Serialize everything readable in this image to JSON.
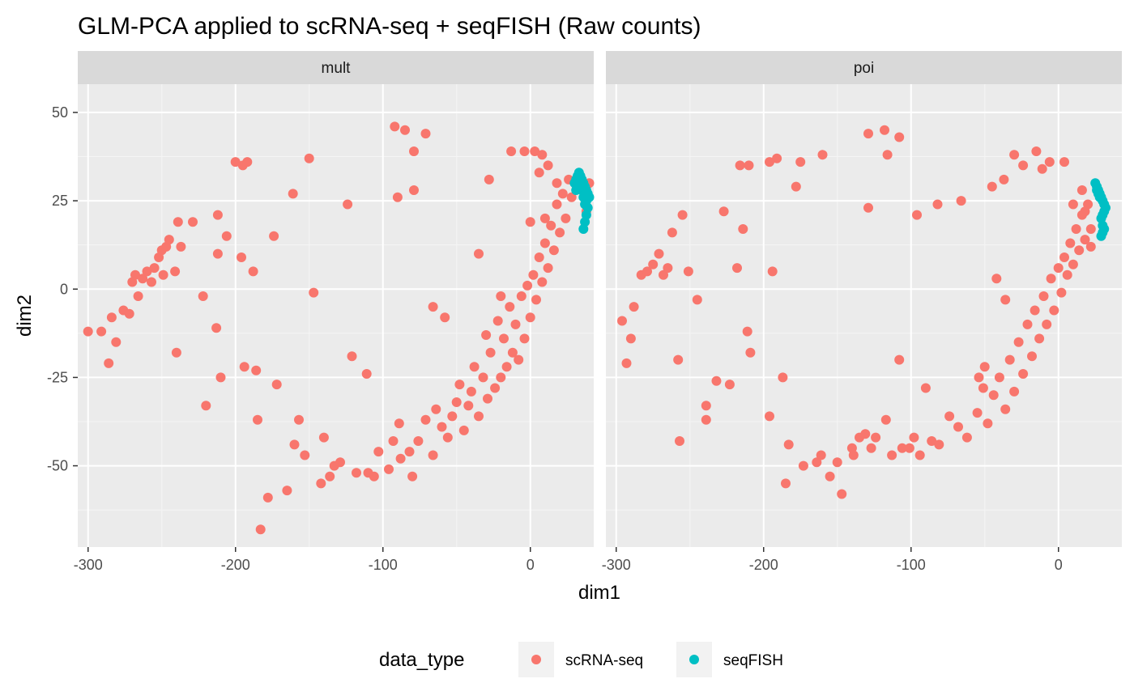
{
  "chart_data": {
    "type": "scatter",
    "title": "GLM-PCA applied to scRNA-seq + seqFISH (Raw counts)",
    "xlabel": "dim1",
    "ylabel": "dim2",
    "facets": [
      "mult",
      "poi"
    ],
    "x_ticks": [
      -300,
      -200,
      -100,
      0
    ],
    "y_ticks": [
      50,
      25,
      0,
      -25,
      -50
    ],
    "xlim": [
      -307,
      43
    ],
    "ylim": [
      -73,
      58
    ],
    "grid": true,
    "legend": {
      "title": "data_type",
      "placement": "bottom",
      "entries": [
        {
          "label": "scRNA-seq",
          "color": "#F8766D"
        },
        {
          "label": "seqFISH",
          "color": "#00BFC4"
        }
      ]
    },
    "series": [
      {
        "name": "scRNA-seq",
        "color": "#F8766D",
        "facet": "mult",
        "points": [
          [
            -300,
            -12
          ],
          [
            -291,
            -12
          ],
          [
            -286,
            -21
          ],
          [
            -284,
            -8
          ],
          [
            -281,
            -15
          ],
          [
            -276,
            -6
          ],
          [
            -272,
            -7
          ],
          [
            -270,
            2
          ],
          [
            -268,
            4
          ],
          [
            -266,
            -2
          ],
          [
            -263,
            3
          ],
          [
            -260,
            5
          ],
          [
            -257,
            2
          ],
          [
            -255,
            6
          ],
          [
            -252,
            9
          ],
          [
            -250,
            11
          ],
          [
            -249,
            4
          ],
          [
            -247,
            12
          ],
          [
            -245,
            14
          ],
          [
            -241,
            5
          ],
          [
            -240,
            -18
          ],
          [
            -239,
            19
          ],
          [
            -237,
            12
          ],
          [
            -229,
            19
          ],
          [
            -222,
            -2
          ],
          [
            -220,
            -33
          ],
          [
            -213,
            -11
          ],
          [
            -212,
            21
          ],
          [
            -212,
            10
          ],
          [
            -210,
            -25
          ],
          [
            -206,
            15
          ],
          [
            -200,
            36
          ],
          [
            -196,
            9
          ],
          [
            -195,
            35
          ],
          [
            -194,
            -22
          ],
          [
            -192,
            36
          ],
          [
            -188,
            5
          ],
          [
            -186,
            -23
          ],
          [
            -185,
            -37
          ],
          [
            -183,
            -68
          ],
          [
            -178,
            -59
          ],
          [
            -174,
            15
          ],
          [
            -172,
            -27
          ],
          [
            -165,
            -57
          ],
          [
            -161,
            27
          ],
          [
            -160,
            -44
          ],
          [
            -157,
            -37
          ],
          [
            -153,
            -47
          ],
          [
            -150,
            37
          ],
          [
            -147,
            -1
          ],
          [
            -142,
            -55
          ],
          [
            -140,
            -42
          ],
          [
            -136,
            -53
          ],
          [
            -133,
            -50
          ],
          [
            -129,
            -49
          ],
          [
            -124,
            24
          ],
          [
            -121,
            -19
          ],
          [
            -118,
            -52
          ],
          [
            -111,
            -24
          ],
          [
            -110,
            -52
          ],
          [
            -106,
            -53
          ],
          [
            -103,
            -46
          ],
          [
            -96,
            -51
          ],
          [
            -93,
            -43
          ],
          [
            -89,
            -38
          ],
          [
            -88,
            -48
          ],
          [
            -82,
            -46
          ],
          [
            -80,
            -53
          ],
          [
            -76,
            -43
          ],
          [
            -71,
            -37
          ],
          [
            -66,
            -47
          ],
          [
            -64,
            -34
          ],
          [
            -60,
            -39
          ],
          [
            -56,
            -42
          ],
          [
            -53,
            -36
          ],
          [
            -50,
            -32
          ],
          [
            -48,
            -27
          ],
          [
            -45,
            -40
          ],
          [
            -42,
            -33
          ],
          [
            -40,
            -29
          ],
          [
            -38,
            -22
          ],
          [
            -35,
            -36
          ],
          [
            -32,
            -25
          ],
          [
            -30,
            -13
          ],
          [
            -29,
            -31
          ],
          [
            -27,
            -18
          ],
          [
            -24,
            -28
          ],
          [
            -22,
            -9
          ],
          [
            -20,
            -25
          ],
          [
            -18,
            -14
          ],
          [
            -16,
            -22
          ],
          [
            -14,
            -5
          ],
          [
            -12,
            -18
          ],
          [
            -10,
            -10
          ],
          [
            -8,
            -20
          ],
          [
            -6,
            -2
          ],
          [
            -4,
            -14
          ],
          [
            -2,
            1
          ],
          [
            0,
            -8
          ],
          [
            2,
            4
          ],
          [
            4,
            -3
          ],
          [
            6,
            9
          ],
          [
            8,
            2
          ],
          [
            10,
            13
          ],
          [
            12,
            6
          ],
          [
            14,
            18
          ],
          [
            16,
            11
          ],
          [
            18,
            24
          ],
          [
            20,
            16
          ],
          [
            22,
            27
          ],
          [
            24,
            20
          ],
          [
            26,
            31
          ],
          [
            28,
            26
          ],
          [
            -92,
            46
          ],
          [
            -85,
            45
          ],
          [
            -71,
            44
          ],
          [
            -79,
            39
          ],
          [
            -90,
            26
          ],
          [
            -79,
            28
          ],
          [
            -28,
            31
          ],
          [
            -13,
            39
          ],
          [
            3,
            39
          ],
          [
            -4,
            39
          ],
          [
            8,
            38
          ],
          [
            12,
            35
          ],
          [
            6,
            33
          ],
          [
            -35,
            10
          ],
          [
            -66,
            -5
          ],
          [
            -58,
            -8
          ],
          [
            -20,
            -2
          ],
          [
            0,
            19
          ],
          [
            10,
            20
          ],
          [
            18,
            30
          ],
          [
            40,
            30
          ],
          [
            38,
            22
          ]
        ]
      },
      {
        "name": "seqFISH",
        "color": "#00BFC4",
        "facet": "mult",
        "points": [
          [
            30,
            30
          ],
          [
            31,
            31
          ],
          [
            32,
            32
          ],
          [
            33,
            33
          ],
          [
            34,
            32
          ],
          [
            35,
            31
          ],
          [
            36,
            30
          ],
          [
            37,
            29
          ],
          [
            38,
            28
          ],
          [
            39,
            27
          ],
          [
            40,
            26
          ],
          [
            38,
            25
          ],
          [
            37,
            24
          ],
          [
            39,
            23
          ],
          [
            36,
            26
          ],
          [
            35,
            28
          ],
          [
            34,
            29
          ],
          [
            33,
            30
          ],
          [
            32,
            29
          ],
          [
            31,
            28
          ],
          [
            38,
            21
          ],
          [
            37,
            19
          ],
          [
            36,
            17
          ]
        ]
      },
      {
        "name": "scRNA-seq",
        "color": "#F8766D",
        "facet": "poi",
        "points": [
          [
            -296,
            -9
          ],
          [
            -293,
            -21
          ],
          [
            -290,
            -14
          ],
          [
            -288,
            -5
          ],
          [
            -283,
            4
          ],
          [
            -279,
            5
          ],
          [
            -275,
            7
          ],
          [
            -271,
            10
          ],
          [
            -268,
            4
          ],
          [
            -265,
            6
          ],
          [
            -262,
            16
          ],
          [
            -258,
            -20
          ],
          [
            -257,
            -43
          ],
          [
            -255,
            21
          ],
          [
            -251,
            5
          ],
          [
            -245,
            -3
          ],
          [
            -239,
            -33
          ],
          [
            -239,
            -37
          ],
          [
            -232,
            -26
          ],
          [
            -227,
            22
          ],
          [
            -223,
            -27
          ],
          [
            -218,
            6
          ],
          [
            -216,
            35
          ],
          [
            -214,
            17
          ],
          [
            -211,
            -12
          ],
          [
            -210,
            35
          ],
          [
            -209,
            -18
          ],
          [
            -196,
            36
          ],
          [
            -196,
            -36
          ],
          [
            -194,
            5
          ],
          [
            -191,
            37
          ],
          [
            -187,
            -25
          ],
          [
            -185,
            -55
          ],
          [
            -183,
            -44
          ],
          [
            -178,
            29
          ],
          [
            -175,
            36
          ],
          [
            -173,
            -50
          ],
          [
            -164,
            -49
          ],
          [
            -161,
            -47
          ],
          [
            -155,
            -53
          ],
          [
            -150,
            -49
          ],
          [
            -139,
            -47
          ],
          [
            -135,
            -42
          ],
          [
            -131,
            -41
          ],
          [
            -127,
            -45
          ],
          [
            -124,
            -42
          ],
          [
            -117,
            -37
          ],
          [
            -113,
            -47
          ],
          [
            -106,
            -45
          ],
          [
            -101,
            -45
          ],
          [
            -98,
            -42
          ],
          [
            -94,
            -47
          ],
          [
            -90,
            -28
          ],
          [
            -86,
            -43
          ],
          [
            -81,
            -44
          ],
          [
            -74,
            -36
          ],
          [
            -68,
            -39
          ],
          [
            -62,
            -42
          ],
          [
            -55,
            -35
          ],
          [
            -51,
            -28
          ],
          [
            -48,
            -38
          ],
          [
            -44,
            -30
          ],
          [
            -40,
            -25
          ],
          [
            -36,
            -34
          ],
          [
            -33,
            -20
          ],
          [
            -30,
            -29
          ],
          [
            -27,
            -15
          ],
          [
            -24,
            -24
          ],
          [
            -21,
            -10
          ],
          [
            -18,
            -19
          ],
          [
            -16,
            -6
          ],
          [
            -13,
            -14
          ],
          [
            -10,
            -2
          ],
          [
            -8,
            -10
          ],
          [
            -5,
            3
          ],
          [
            -3,
            -6
          ],
          [
            0,
            6
          ],
          [
            2,
            -1
          ],
          [
            4,
            9
          ],
          [
            6,
            4
          ],
          [
            8,
            13
          ],
          [
            10,
            7
          ],
          [
            12,
            17
          ],
          [
            14,
            11
          ],
          [
            16,
            21
          ],
          [
            18,
            14
          ],
          [
            20,
            24
          ],
          [
            22,
            17
          ],
          [
            -129,
            44
          ],
          [
            -118,
            45
          ],
          [
            -116,
            38
          ],
          [
            -108,
            43
          ],
          [
            -147,
            -58
          ],
          [
            -140,
            -45
          ],
          [
            -160,
            38
          ],
          [
            -129,
            23
          ],
          [
            -108,
            -20
          ],
          [
            -96,
            21
          ],
          [
            -82,
            24
          ],
          [
            -66,
            25
          ],
          [
            -54,
            -25
          ],
          [
            -45,
            29
          ],
          [
            -37,
            31
          ],
          [
            -30,
            38
          ],
          [
            -24,
            35
          ],
          [
            -15,
            39
          ],
          [
            -6,
            36
          ],
          [
            -11,
            34
          ],
          [
            4,
            36
          ],
          [
            -42,
            3
          ],
          [
            -50,
            -22
          ],
          [
            -36,
            -3
          ],
          [
            10,
            24
          ],
          [
            16,
            28
          ],
          [
            18,
            22
          ],
          [
            22,
            12
          ]
        ]
      },
      {
        "name": "seqFISH",
        "color": "#00BFC4",
        "facet": "poi",
        "points": [
          [
            25,
            30
          ],
          [
            26,
            29
          ],
          [
            27,
            28
          ],
          [
            28,
            27
          ],
          [
            29,
            26
          ],
          [
            30,
            25
          ],
          [
            31,
            24
          ],
          [
            32,
            23
          ],
          [
            31,
            22
          ],
          [
            30,
            21
          ],
          [
            29,
            20
          ],
          [
            30,
            18
          ],
          [
            31,
            17
          ],
          [
            30,
            16
          ],
          [
            29,
            15
          ],
          [
            28,
            26
          ],
          [
            27,
            27
          ],
          [
            26,
            28
          ]
        ]
      }
    ]
  }
}
